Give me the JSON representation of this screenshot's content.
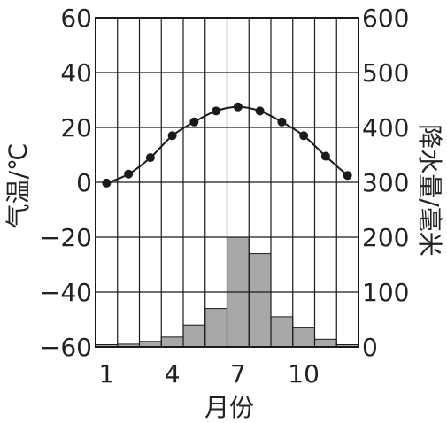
{
  "chart_data": {
    "type": "climograph",
    "xlabel": "月份",
    "x_ticks": [
      "1",
      "4",
      "7",
      "10"
    ],
    "months": [
      1,
      2,
      3,
      4,
      5,
      6,
      7,
      8,
      9,
      10,
      11,
      12
    ],
    "temperature": {
      "ylabel": "气温/℃",
      "ylim": [
        -60,
        60
      ],
      "ticks": [
        "60",
        "40",
        "20",
        "0",
        "−20",
        "−40",
        "−60"
      ],
      "values": [
        -0.3,
        3,
        9,
        17,
        22,
        26,
        27.5,
        26,
        22,
        17,
        9.5,
        2.5
      ]
    },
    "precipitation": {
      "ylabel": "降水量/毫米",
      "ylim": [
        0,
        600
      ],
      "ticks": [
        "600",
        "500",
        "400",
        "300",
        "200",
        "100",
        "0"
      ],
      "values": [
        4,
        5,
        10,
        18,
        40,
        70,
        200,
        170,
        55,
        35,
        14,
        4
      ]
    },
    "grid": true,
    "colors": {
      "bar": "#a8a8a8",
      "line": "#1a1a1a",
      "grid": "#1a1a1a"
    }
  }
}
